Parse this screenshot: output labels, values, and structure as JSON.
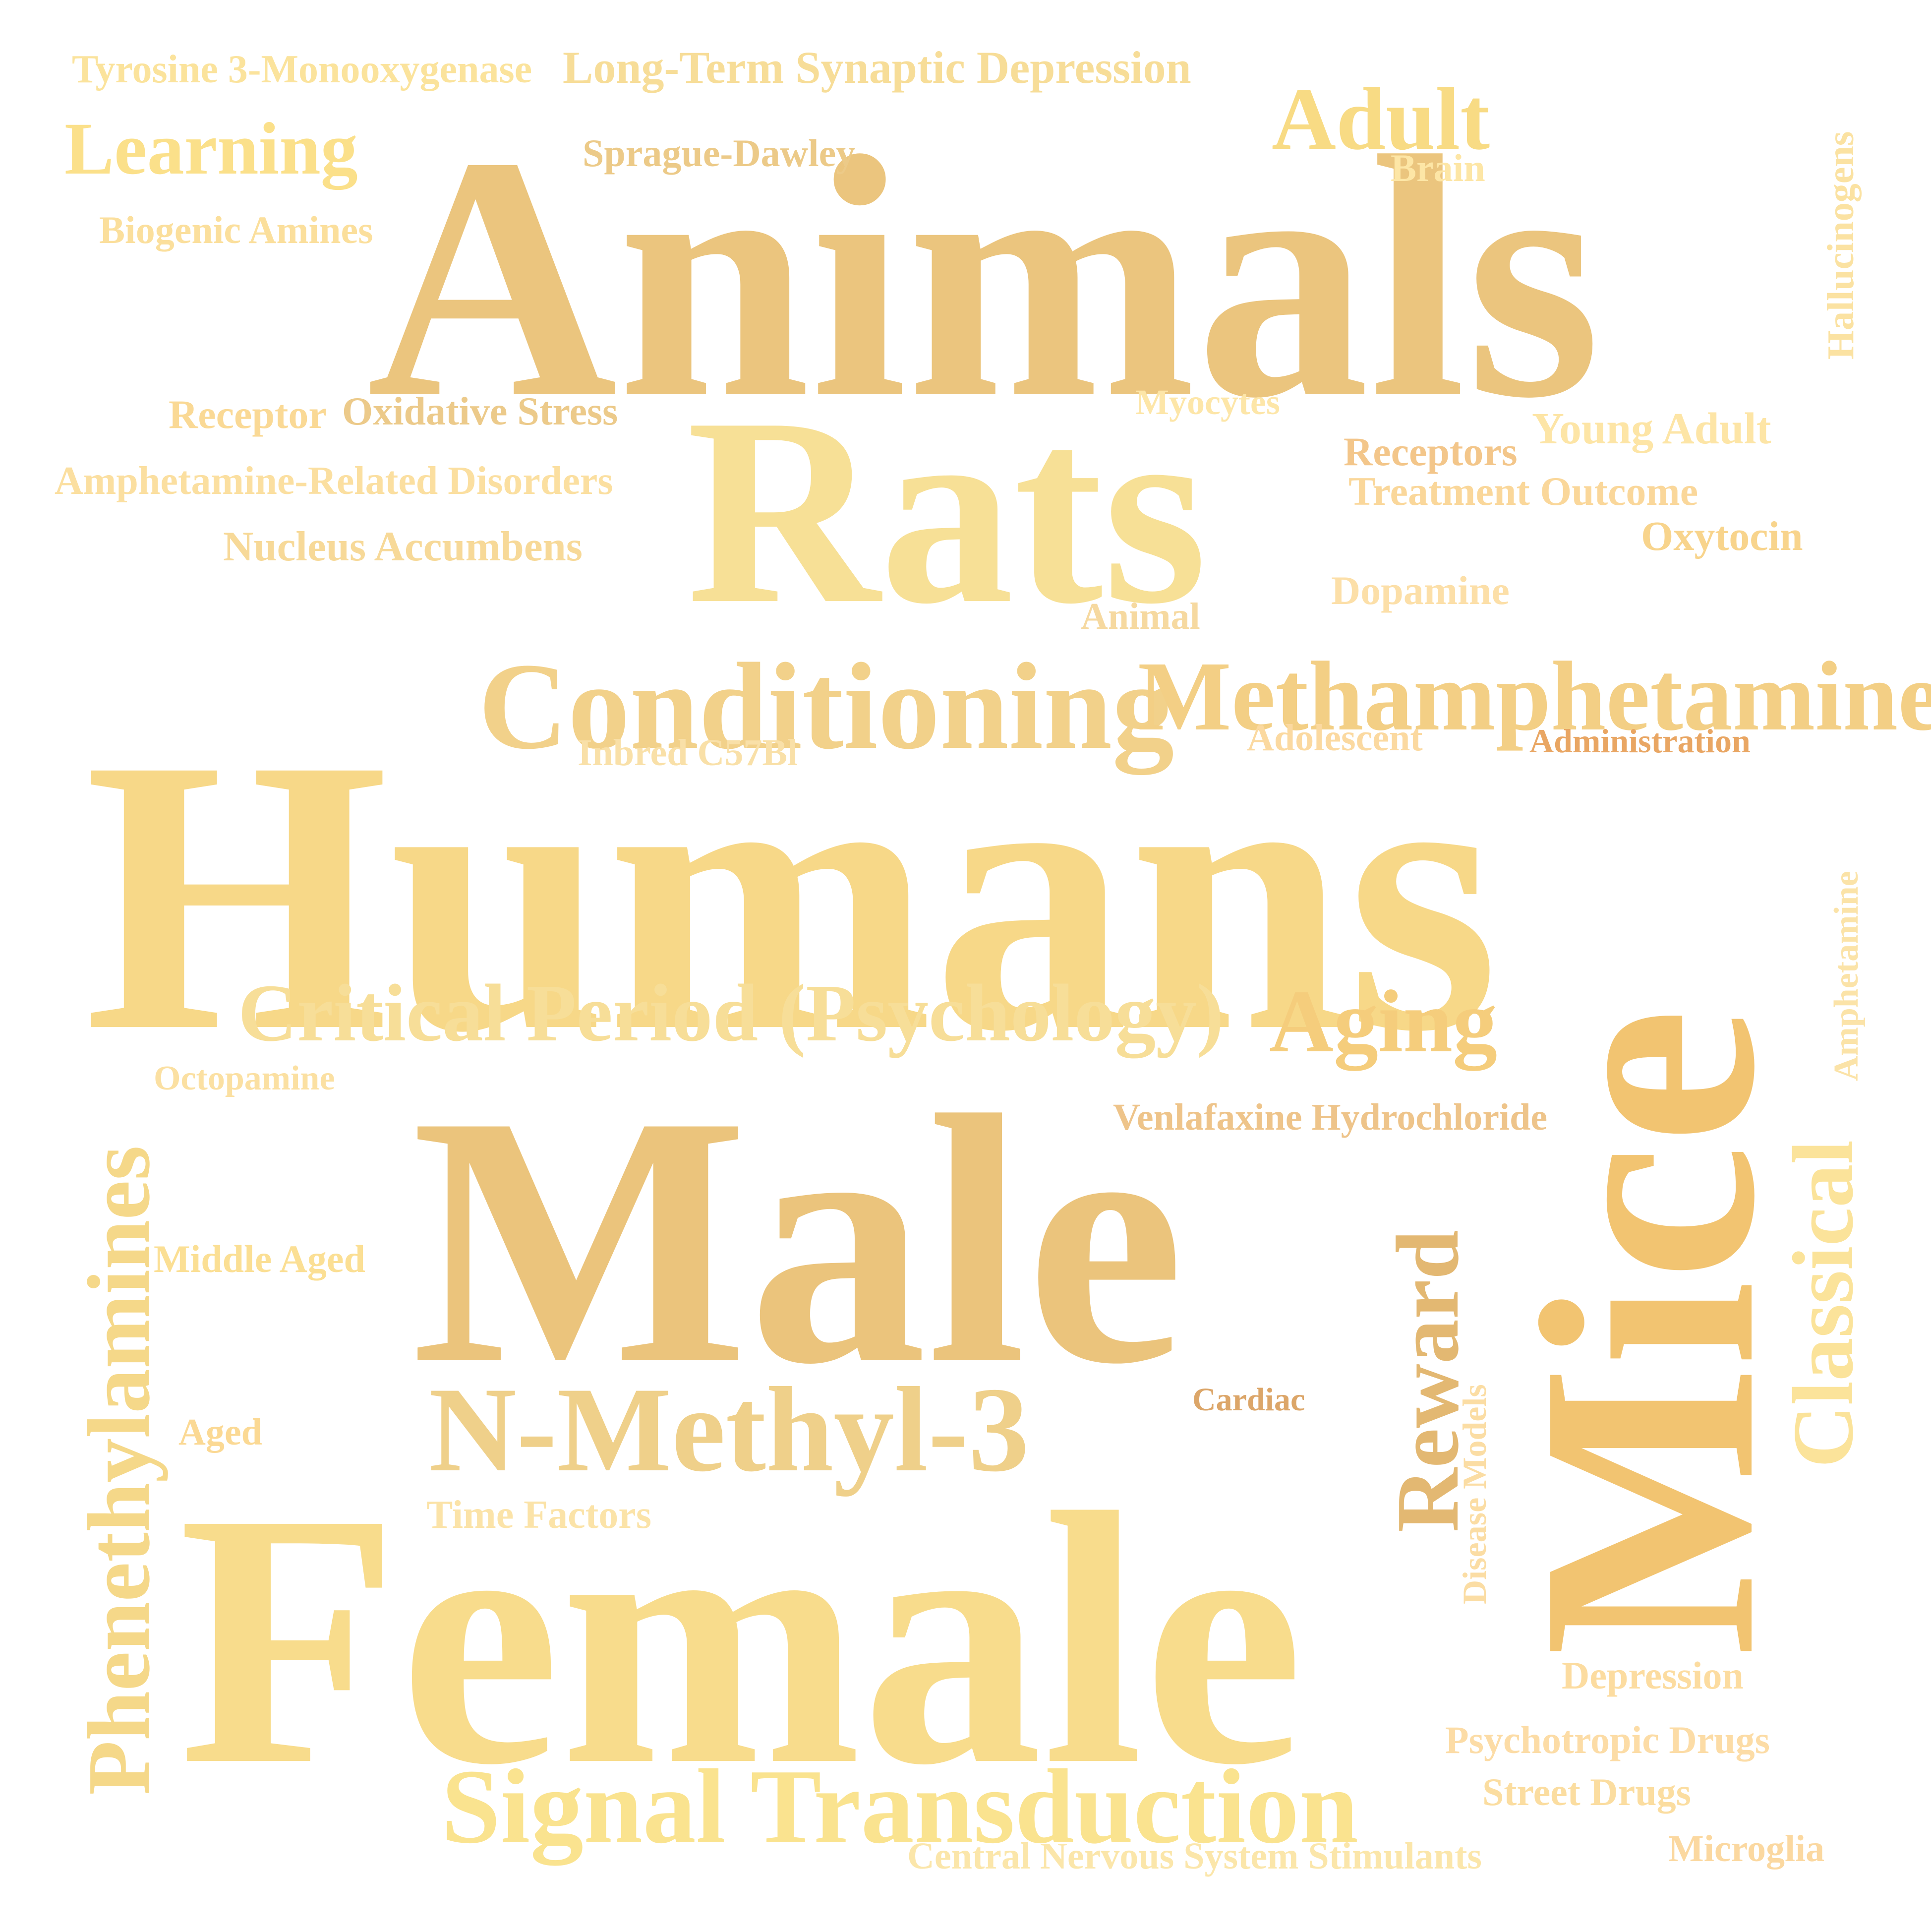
{
  "words": [
    {
      "text": "Animals",
      "color": "#ebc57e"
    },
    {
      "text": "Rats",
      "color": "#f7e096"
    },
    {
      "text": "Humans",
      "color": "#f7d888"
    },
    {
      "text": "Male",
      "color": "#ebc47c"
    },
    {
      "text": "Female",
      "color": "#f8dc8c"
    },
    {
      "text": "Mice",
      "color": "#f2c471"
    },
    {
      "text": "Conditioning",
      "color": "#f2d18a"
    },
    {
      "text": "Methamphetamine",
      "color": "#f3cf85"
    },
    {
      "text": "Critical Period (Psychology)",
      "color": "#f7de98"
    },
    {
      "text": "Aging",
      "color": "#f5cd7c"
    },
    {
      "text": "N-Methyl-3",
      "color": "#efd08a"
    },
    {
      "text": "Signal Transduction",
      "color": "#fae38f"
    },
    {
      "text": "Phenethylamines",
      "color": "#f5d889"
    },
    {
      "text": "Classical",
      "color": "#fbe39a"
    },
    {
      "text": "Reward",
      "color": "#e3b872"
    },
    {
      "text": "Adult",
      "color": "#f8db84"
    },
    {
      "text": "Learning",
      "color": "#fbe08a"
    },
    {
      "text": "Tyrosine 3-Monooxygenase",
      "color": "#fbe39c"
    },
    {
      "text": "Long-Term Synaptic Depression",
      "color": "#f7dd98"
    },
    {
      "text": "Sprague-Dawley",
      "color": "#ecca88"
    },
    {
      "text": "Brain",
      "color": "#fde6a6"
    },
    {
      "text": "Hallucinogens",
      "color": "#fbe2a2"
    },
    {
      "text": "Biogenic Amines",
      "color": "#fbdf9c"
    },
    {
      "text": "Receptor",
      "color": "#fad995"
    },
    {
      "text": "Oxidative Stress",
      "color": "#ecca8a"
    },
    {
      "text": "Myocytes",
      "color": "#fde6a8"
    },
    {
      "text": "Young Adult",
      "color": "#fde5a6"
    },
    {
      "text": "Receptors",
      "color": "#f3c68a"
    },
    {
      "text": "Treatment Outcome",
      "color": "#fad79a"
    },
    {
      "text": "Oxytocin",
      "color": "#f8d48c"
    },
    {
      "text": "Amphetamine-Related Disorders",
      "color": "#fbdfa0"
    },
    {
      "text": "Nucleus Accumbens",
      "color": "#f7d998"
    },
    {
      "text": "Dopamine",
      "color": "#fcdfa8"
    },
    {
      "text": "Animal",
      "color": "#f6d9a0"
    },
    {
      "text": "Inbred C57Bl",
      "color": "#f9e0a8"
    },
    {
      "text": "Adolescent",
      "color": "#fbd9a0"
    },
    {
      "text": "Administration",
      "color": "#e9a663"
    },
    {
      "text": "Amphetamine",
      "color": "#fbe3a8"
    },
    {
      "text": "Octopamine",
      "color": "#fbe0a2"
    },
    {
      "text": "Venlafaxine Hydrochloride",
      "color": "#eec48a"
    },
    {
      "text": "Middle Aged",
      "color": "#fbdf94"
    },
    {
      "text": "Cardiac",
      "color": "#dca669"
    },
    {
      "text": "Disease Models",
      "color": "#fbdda4"
    },
    {
      "text": "Aged",
      "color": "#fbd994"
    },
    {
      "text": "Time Factors",
      "color": "#fbe3a8"
    },
    {
      "text": "Depression",
      "color": "#fcdca0"
    },
    {
      "text": "Psychotropic Drugs",
      "color": "#fcdca6"
    },
    {
      "text": "Street Drugs",
      "color": "#fbdda0"
    },
    {
      "text": "Central Nervous System Stimulants",
      "color": "#fbe6aa"
    },
    {
      "text": "Microglia",
      "color": "#fbd8a0"
    }
  ]
}
